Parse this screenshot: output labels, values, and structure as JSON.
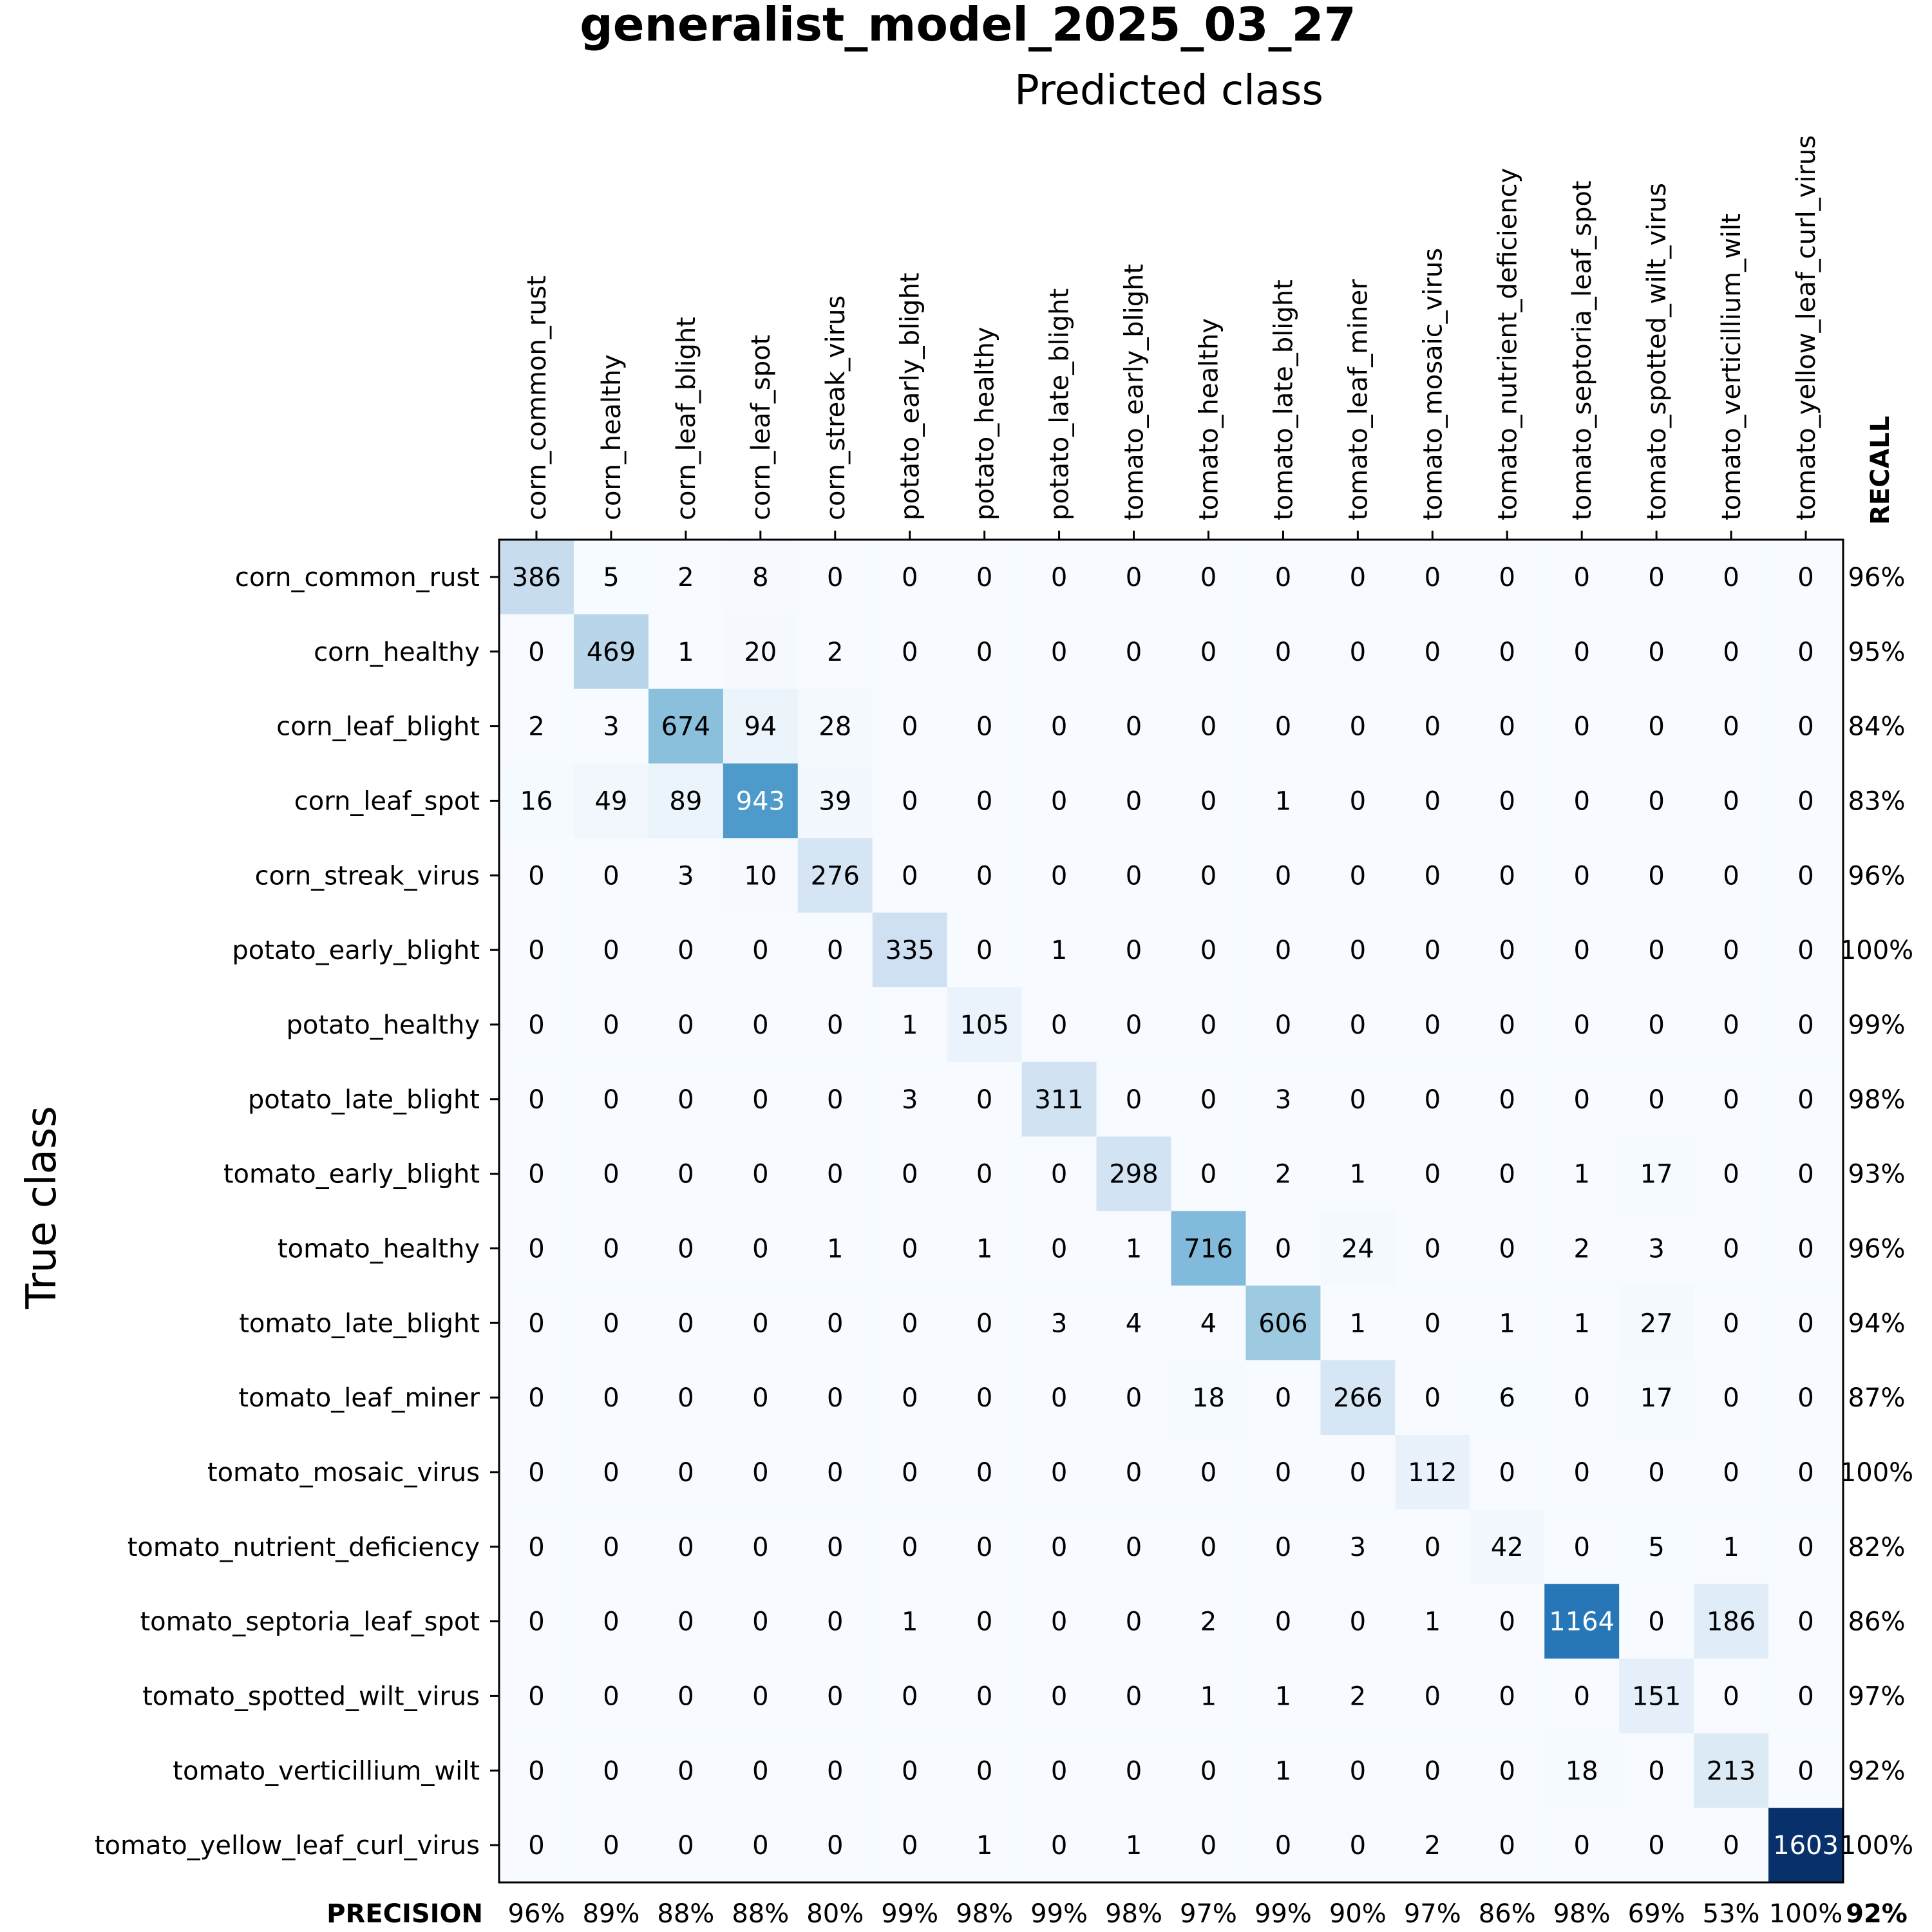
{
  "chart_data": {
    "type": "heatmap",
    "title": "generalist_model_2025_03_27",
    "xlabel": "Predicted class",
    "ylabel": "True class",
    "colormap": "Blues",
    "classes": [
      "corn_common_rust",
      "corn_healthy",
      "corn_leaf_blight",
      "corn_leaf_spot",
      "corn_streak_virus",
      "potato_early_blight",
      "potato_healthy",
      "potato_late_blight",
      "tomato_early_blight",
      "tomato_healthy",
      "tomato_late_blight",
      "tomato_leaf_miner",
      "tomato_mosaic_virus",
      "tomato_nutrient_deficiency",
      "tomato_septoria_leaf_spot",
      "tomato_spotted_wilt_virus",
      "tomato_verticillium_wilt",
      "tomato_yellow_leaf_curl_virus"
    ],
    "matrix": [
      [
        386,
        5,
        2,
        8,
        0,
        0,
        0,
        0,
        0,
        0,
        0,
        0,
        0,
        0,
        0,
        0,
        0,
        0
      ],
      [
        0,
        469,
        1,
        20,
        2,
        0,
        0,
        0,
        0,
        0,
        0,
        0,
        0,
        0,
        0,
        0,
        0,
        0
      ],
      [
        2,
        3,
        674,
        94,
        28,
        0,
        0,
        0,
        0,
        0,
        0,
        0,
        0,
        0,
        0,
        0,
        0,
        0
      ],
      [
        16,
        49,
        89,
        943,
        39,
        0,
        0,
        0,
        0,
        0,
        1,
        0,
        0,
        0,
        0,
        0,
        0,
        0
      ],
      [
        0,
        0,
        3,
        10,
        276,
        0,
        0,
        0,
        0,
        0,
        0,
        0,
        0,
        0,
        0,
        0,
        0,
        0
      ],
      [
        0,
        0,
        0,
        0,
        0,
        335,
        0,
        1,
        0,
        0,
        0,
        0,
        0,
        0,
        0,
        0,
        0,
        0
      ],
      [
        0,
        0,
        0,
        0,
        0,
        1,
        105,
        0,
        0,
        0,
        0,
        0,
        0,
        0,
        0,
        0,
        0,
        0
      ],
      [
        0,
        0,
        0,
        0,
        0,
        3,
        0,
        311,
        0,
        0,
        3,
        0,
        0,
        0,
        0,
        0,
        0,
        0
      ],
      [
        0,
        0,
        0,
        0,
        0,
        0,
        0,
        0,
        298,
        0,
        2,
        1,
        0,
        0,
        1,
        17,
        0,
        0
      ],
      [
        0,
        0,
        0,
        0,
        1,
        0,
        1,
        0,
        1,
        716,
        0,
        24,
        0,
        0,
        2,
        3,
        0,
        0
      ],
      [
        0,
        0,
        0,
        0,
        0,
        0,
        0,
        3,
        4,
        4,
        606,
        1,
        0,
        1,
        1,
        27,
        0,
        0
      ],
      [
        0,
        0,
        0,
        0,
        0,
        0,
        0,
        0,
        0,
        18,
        0,
        266,
        0,
        6,
        0,
        17,
        0,
        0
      ],
      [
        0,
        0,
        0,
        0,
        0,
        0,
        0,
        0,
        0,
        0,
        0,
        0,
        112,
        0,
        0,
        0,
        0,
        0
      ],
      [
        0,
        0,
        0,
        0,
        0,
        0,
        0,
        0,
        0,
        0,
        0,
        3,
        0,
        42,
        0,
        5,
        1,
        0
      ],
      [
        0,
        0,
        0,
        0,
        0,
        1,
        0,
        0,
        0,
        2,
        0,
        0,
        1,
        0,
        1164,
        0,
        186,
        0
      ],
      [
        0,
        0,
        0,
        0,
        0,
        0,
        0,
        0,
        0,
        1,
        1,
        2,
        0,
        0,
        0,
        151,
        0,
        0
      ],
      [
        0,
        0,
        0,
        0,
        0,
        0,
        0,
        0,
        0,
        0,
        1,
        0,
        0,
        0,
        18,
        0,
        213,
        0
      ],
      [
        0,
        0,
        0,
        0,
        0,
        0,
        1,
        0,
        1,
        0,
        0,
        0,
        2,
        0,
        0,
        0,
        0,
        1603
      ]
    ],
    "recall_label": "RECALL",
    "recall": [
      "96%",
      "95%",
      "84%",
      "83%",
      "96%",
      "100%",
      "99%",
      "98%",
      "93%",
      "96%",
      "94%",
      "87%",
      "100%",
      "82%",
      "86%",
      "97%",
      "92%",
      "100%"
    ],
    "precision_label": "PRECISION",
    "precision": [
      "96%",
      "89%",
      "88%",
      "88%",
      "80%",
      "99%",
      "98%",
      "99%",
      "98%",
      "97%",
      "99%",
      "90%",
      "97%",
      "86%",
      "98%",
      "69%",
      "53%",
      "100%"
    ],
    "overall_accuracy": "92%",
    "grid": false,
    "legend": "none"
  }
}
